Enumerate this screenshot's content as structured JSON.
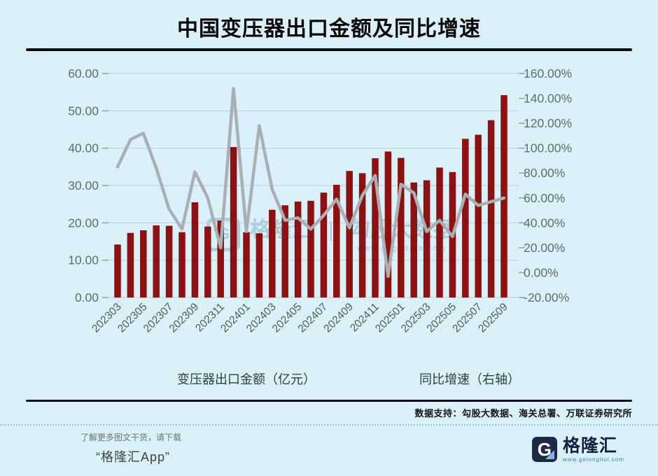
{
  "title": "中国变压器出口金额及同比增速",
  "colors": {
    "background": "#DBF1FA",
    "bar": "#8D1111",
    "line": "#A9AFB3",
    "grid": "#c3d2da",
    "tick": "#8fa0aa",
    "axis_text": "#5c6e78",
    "x_text": "#4d5d66"
  },
  "chart_data": {
    "type": "bar+line",
    "categories": [
      "202303",
      "202304",
      "202305",
      "202306",
      "202307",
      "202308",
      "202309",
      "202310",
      "202311",
      "202312",
      "202401",
      "202402",
      "202403",
      "202404",
      "202405",
      "202406",
      "202407",
      "202408",
      "202409",
      "202410",
      "202411",
      "202412",
      "202501",
      "202502",
      "202503",
      "202504",
      "202505",
      "202506",
      "202507",
      "202508",
      "202509"
    ],
    "x_tick_labels": [
      "202303",
      "202305",
      "202307",
      "202309",
      "202311",
      "202401",
      "202403",
      "202405",
      "202407",
      "202409",
      "202411",
      "202501",
      "202503",
      "202505",
      "202507",
      "202509"
    ],
    "series": [
      {
        "name": "变压器出口金额（亿元）",
        "type": "bar",
        "axis": "left",
        "values": [
          14.2,
          17.3,
          18.0,
          19.3,
          19.2,
          17.5,
          25.5,
          19.0,
          20.6,
          40.3,
          17.5,
          17.2,
          23.5,
          24.7,
          25.7,
          25.9,
          28.1,
          30.2,
          33.9,
          33.3,
          37.3,
          39.1,
          37.4,
          30.8,
          31.4,
          34.8,
          33.6,
          42.5,
          43.6,
          47.5,
          54.2
        ]
      },
      {
        "name": "同比增速（右轴）",
        "type": "line",
        "axis": "right",
        "values": [
          85,
          107,
          112,
          84,
          51,
          35,
          81,
          60,
          20,
          148,
          33,
          118,
          67,
          42,
          44,
          35,
          46,
          59,
          36,
          62,
          78,
          -3,
          71,
          64,
          33,
          42,
          29,
          63,
          54,
          57,
          60
        ]
      }
    ],
    "left_axis": {
      "min": 0,
      "max": 60,
      "step": 10,
      "tick_labels": [
        "0.00",
        "10.00",
        "20.00",
        "30.00",
        "40.00",
        "50.00",
        "60.00"
      ]
    },
    "right_axis": {
      "min": -20,
      "max": 160,
      "step": 20,
      "tick_labels": [
        "-20.00%",
        "0.00%",
        "20.00%",
        "40.00%",
        "60.00%",
        "80.00%",
        "100.00%",
        "120.00%",
        "140.00%",
        "160.00%"
      ]
    },
    "grid": true,
    "legend_position": "bottom"
  },
  "legend": {
    "bar_label": "变压器出口金额（亿元）",
    "line_label": "同比增速（右轴）"
  },
  "watermark": {
    "logo_letter": "G",
    "brand": "格隆汇",
    "separator": "|",
    "name": "勾股大数据",
    "url": "www.gugudata.com"
  },
  "credit": "数据支持：勾股大数据、海关总署、万联证券研究所",
  "footer": {
    "promo_line1": "了解更多图文干货，请下载",
    "promo_line2": "“格隆汇App”",
    "logo_letter": "G",
    "logo_text": "格隆汇",
    "logo_url": "www.gelonghui.com"
  }
}
